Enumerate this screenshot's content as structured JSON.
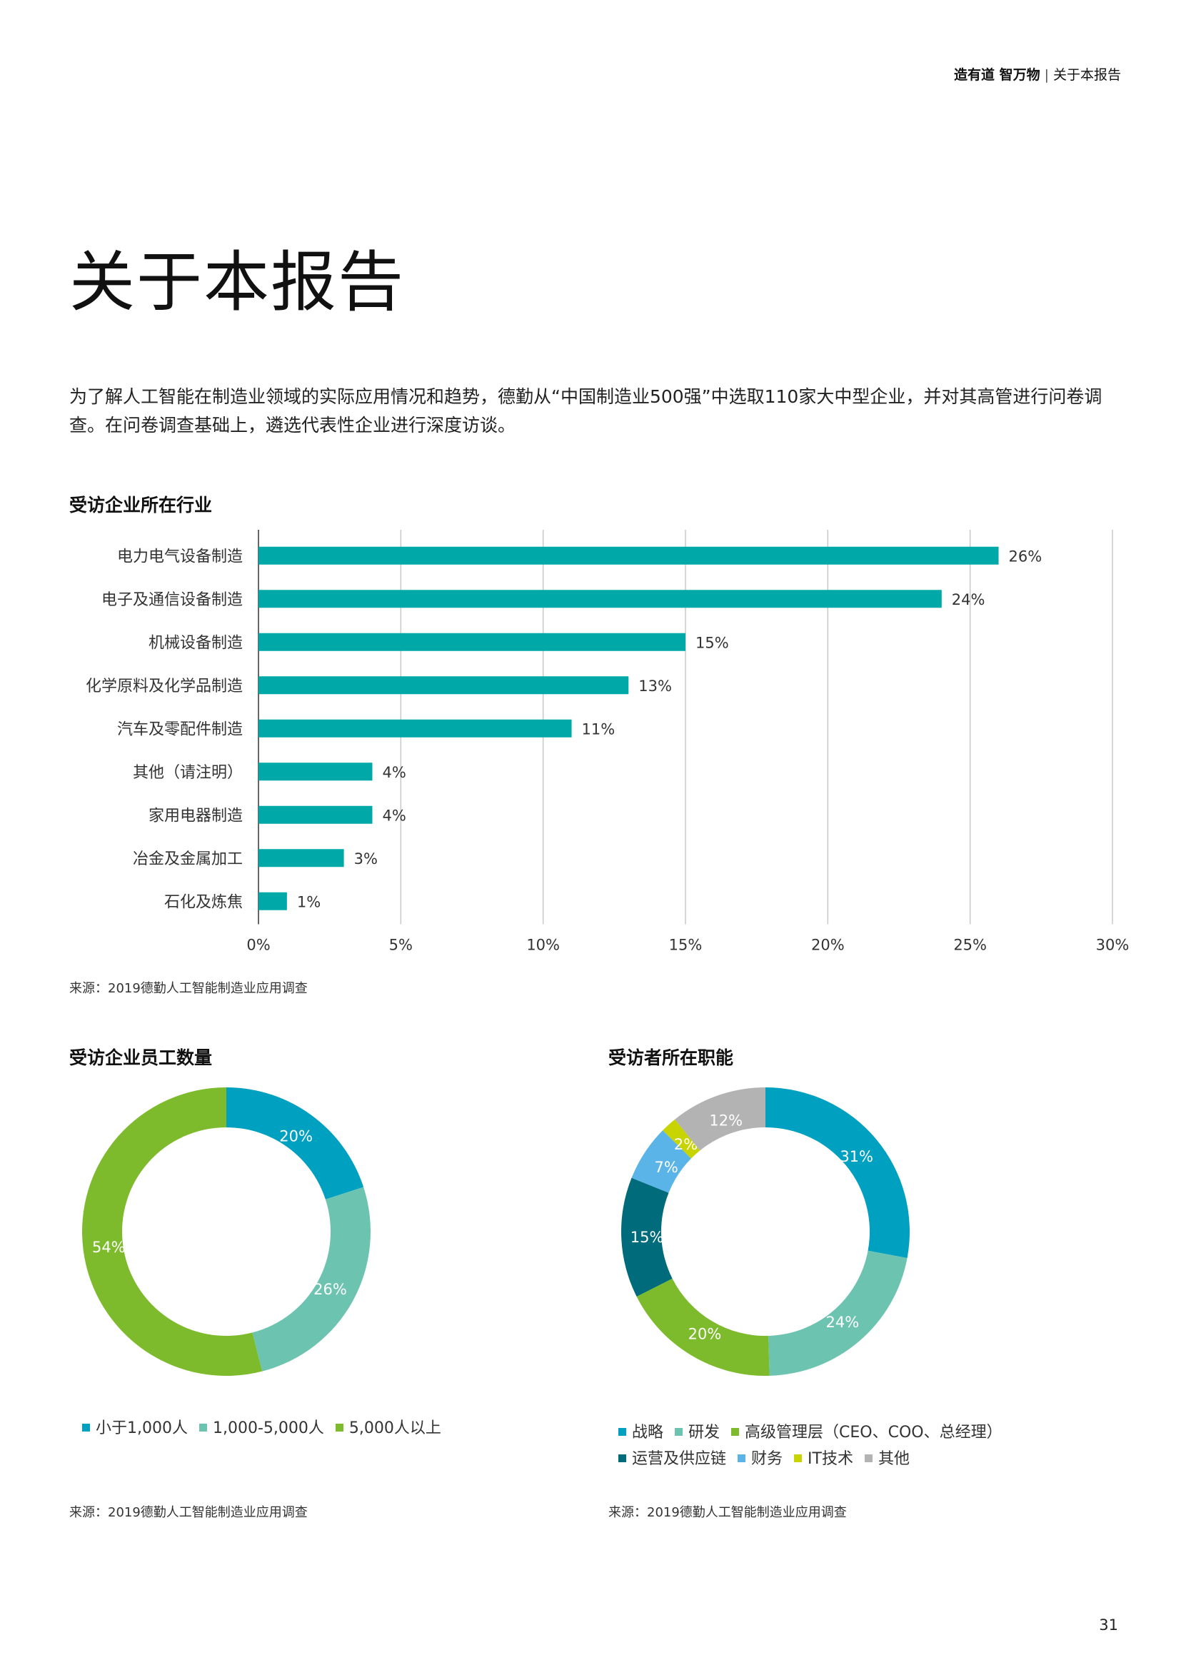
{
  "header": {
    "brand": "造有道 智万物",
    "separator": "|",
    "section": "关于本报告"
  },
  "title": "关于本报告",
  "intro": "为了解人工智能在制造业领域的实际应用情况和趋势，德勤从“中国制造业500强”中选取110家大中型企业，并对其高管进行问卷调查。在问卷调查基础上，遴选代表性企业进行深度访谈。",
  "industry": {
    "title": "受访企业所在行业",
    "source": "来源：2019德勤人工智能制造业应用调查"
  },
  "employees": {
    "title": "受访企业员工数量",
    "source": "来源：2019德勤人工智能制造业应用调查"
  },
  "roles": {
    "title": "受访者所在职能",
    "source": "来源：2019德勤人工智能制造业应用调查"
  },
  "page_number": "31",
  "colors": {
    "teal": "#00a8a8",
    "blue": "#00a0c0",
    "mint": "#6cc4b0",
    "green": "#7dbb2c",
    "darkteal": "#006b7a",
    "lightblue": "#5ab4e8",
    "lime": "#c8d400",
    "gray": "#b3b3b3"
  },
  "chart_data": [
    {
      "type": "bar",
      "orientation": "horizontal",
      "categories": [
        "电力电气设备制造",
        "电子及通信设备制造",
        "机械设备制造",
        "化学原料及化学品制造",
        "汽车及零配件制造",
        "其他（请注明）",
        "家用电器制造",
        "冶金及金属加工",
        "石化及炼焦"
      ],
      "values": [
        26,
        24,
        15,
        13,
        11,
        4,
        4,
        3,
        1
      ],
      "value_labels": [
        "26%",
        "24%",
        "15%",
        "13%",
        "11%",
        "4%",
        "4%",
        "3%",
        "1%"
      ],
      "xlim": [
        0,
        30
      ],
      "xticks": [
        0,
        5,
        10,
        15,
        20,
        25,
        30
      ],
      "xtick_labels": [
        "0%",
        "5%",
        "10%",
        "15%",
        "20%",
        "25%",
        "30%"
      ],
      "grid": true,
      "color": "#00a8a8"
    },
    {
      "type": "pie",
      "style": "donut",
      "labels": [
        "小于1,000人",
        "1,000-5,000人",
        "5,000人以上"
      ],
      "values": [
        20,
        26,
        54
      ],
      "value_labels": [
        "20%",
        "26%",
        "54%"
      ],
      "colors": [
        "#00a0c0",
        "#6cc4b0",
        "#7dbb2c"
      ],
      "legend": "bottom"
    },
    {
      "type": "pie",
      "style": "donut",
      "labels": [
        "战略",
        "研发",
        "高级管理层（CEO、COO、总经理）",
        "运营及供应链",
        "财务",
        "IT技术",
        "其他"
      ],
      "values": [
        31,
        24,
        20,
        15,
        7,
        2,
        12
      ],
      "value_labels": [
        "31%",
        "24%",
        "20%",
        "15%",
        "7%",
        "2%",
        "12%"
      ],
      "colors": [
        "#00a0c0",
        "#6cc4b0",
        "#7dbb2c",
        "#006b7a",
        "#5ab4e8",
        "#c8d400",
        "#b3b3b3"
      ],
      "legend": "bottom"
    }
  ]
}
